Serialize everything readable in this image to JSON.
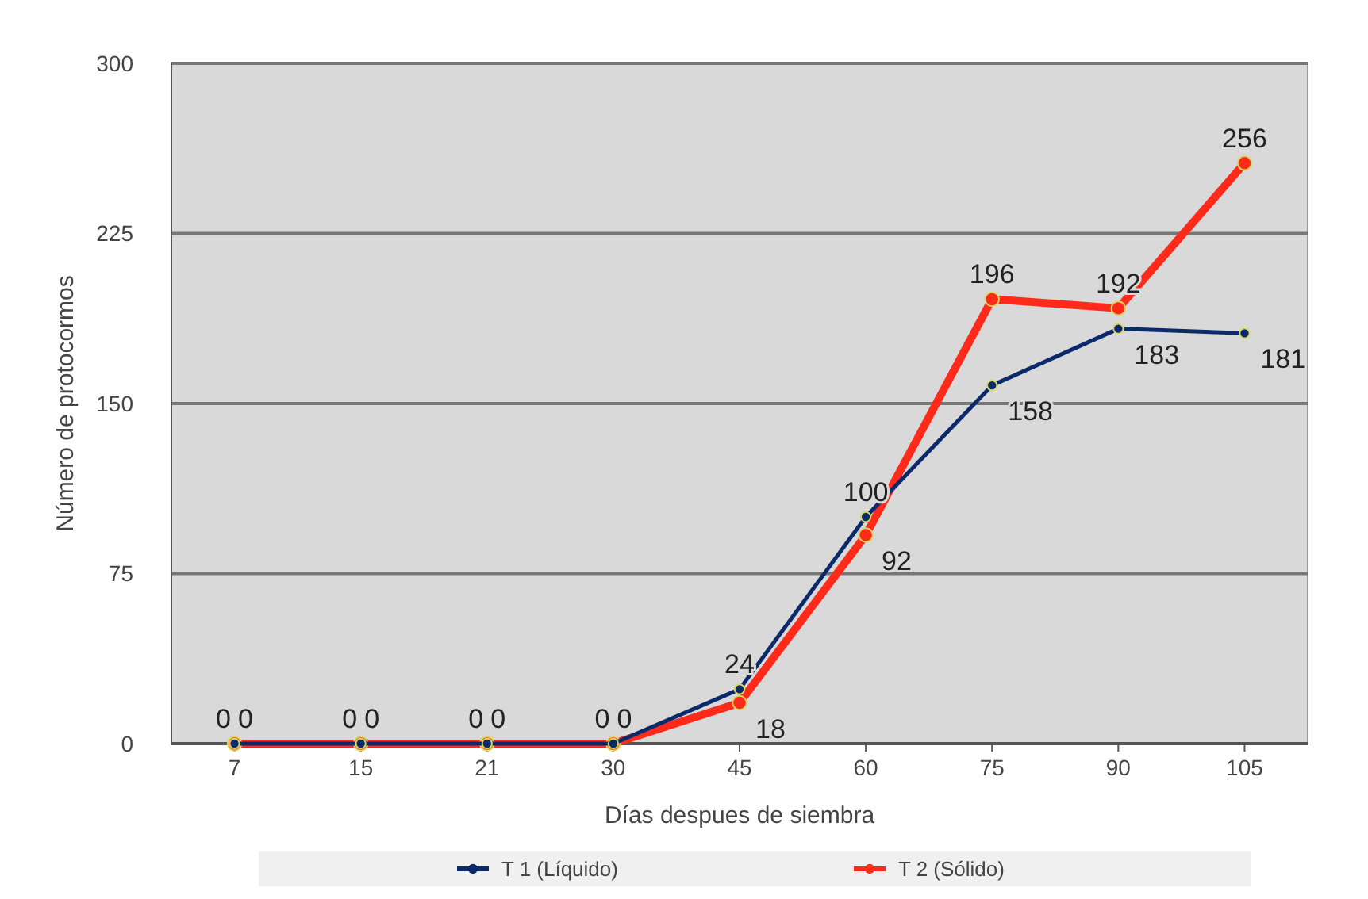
{
  "chart_data": {
    "type": "line",
    "xlabel": "Días despues de siembra",
    "ylabel": "Número de protocormos",
    "categories": [
      "7",
      "15",
      "21",
      "30",
      "45",
      "60",
      "75",
      "90",
      "105"
    ],
    "series": [
      {
        "name": "T 1 (Líquido)",
        "color": "#0b2a6b",
        "values": [
          0,
          0,
          0,
          0,
          24,
          100,
          158,
          183,
          181
        ]
      },
      {
        "name": "T 2 (Sólido)",
        "color": "#ff2a1a",
        "values": [
          0,
          0,
          0,
          0,
          18,
          92,
          196,
          192,
          256
        ]
      }
    ],
    "ylim": [
      0,
      300
    ],
    "yticks": [
      0,
      75,
      150,
      225,
      300
    ],
    "grid": "y",
    "legend": "bottom",
    "marker": "circle",
    "data_labels": true
  }
}
